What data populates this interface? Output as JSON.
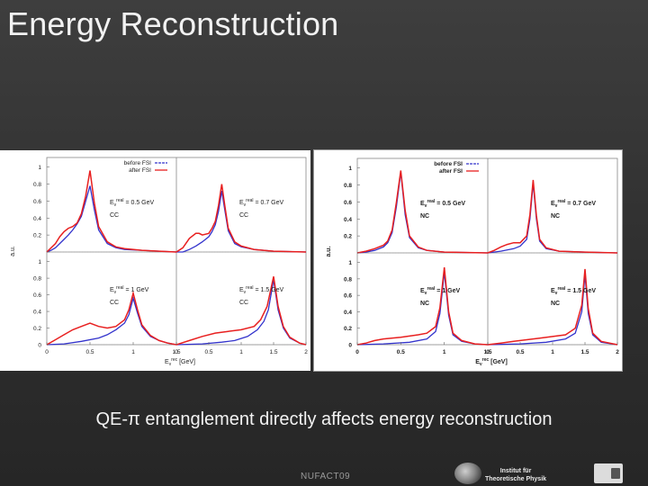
{
  "slide": {
    "title": "Energy Reconstruction",
    "caption": "QE-π entanglement directly affects energy reconstruction",
    "footer": "NUFACT09",
    "logo_text": [
      "Institut für",
      "Theoretische Physik"
    ]
  },
  "colors": {
    "before": "#3333cc",
    "after": "#e82020",
    "ref": "#9a9a9a"
  },
  "chart_data": [
    {
      "type": "line",
      "id": "cc",
      "ylabel": "a.u.",
      "xlabel": "E_ν^rec [GeV]",
      "legend": [
        "before FSI",
        "after FSI"
      ],
      "legend_placement": "top-right",
      "grid": false,
      "x_tick_labels": [
        "0",
        "0.5",
        "1",
        "1.5",
        "0",
        "0.5",
        "1",
        "1.5",
        "2"
      ],
      "y_tick_labels": [
        "1",
        "0.8",
        "0.6",
        "0.4",
        "0.2",
        "0"
      ],
      "ylim": [
        0,
        1.05
      ],
      "panels": [
        {
          "pos": "top-left",
          "ereal": "0.5",
          "channel": "CC",
          "xlim": [
            0,
            1.5
          ],
          "before": [
            [
              0,
              0
            ],
            [
              0.05,
              0.02
            ],
            [
              0.1,
              0.05
            ],
            [
              0.15,
              0.1
            ],
            [
              0.2,
              0.15
            ],
            [
              0.25,
              0.2
            ],
            [
              0.3,
              0.26
            ],
            [
              0.35,
              0.33
            ],
            [
              0.4,
              0.42
            ],
            [
              0.45,
              0.6
            ],
            [
              0.5,
              0.78
            ],
            [
              0.55,
              0.5
            ],
            [
              0.6,
              0.26
            ],
            [
              0.7,
              0.1
            ],
            [
              0.8,
              0.05
            ],
            [
              0.9,
              0.03
            ],
            [
              1.1,
              0.02
            ],
            [
              1.3,
              0.01
            ],
            [
              1.5,
              0
            ]
          ],
          "after": [
            [
              0,
              0
            ],
            [
              0.05,
              0.05
            ],
            [
              0.1,
              0.1
            ],
            [
              0.15,
              0.18
            ],
            [
              0.2,
              0.24
            ],
            [
              0.25,
              0.28
            ],
            [
              0.3,
              0.3
            ],
            [
              0.35,
              0.34
            ],
            [
              0.4,
              0.45
            ],
            [
              0.45,
              0.66
            ],
            [
              0.5,
              0.96
            ],
            [
              0.55,
              0.58
            ],
            [
              0.6,
              0.3
            ],
            [
              0.7,
              0.12
            ],
            [
              0.8,
              0.06
            ],
            [
              0.9,
              0.04
            ],
            [
              1.1,
              0.02
            ],
            [
              1.3,
              0.01
            ],
            [
              1.5,
              0
            ]
          ]
        },
        {
          "pos": "top-right",
          "ereal": "0.7",
          "channel": "CC",
          "xlim": [
            0,
            2
          ],
          "before": [
            [
              0,
              0
            ],
            [
              0.1,
              0
            ],
            [
              0.2,
              0.03
            ],
            [
              0.3,
              0.07
            ],
            [
              0.4,
              0.12
            ],
            [
              0.5,
              0.18
            ],
            [
              0.55,
              0.24
            ],
            [
              0.6,
              0.32
            ],
            [
              0.65,
              0.48
            ],
            [
              0.7,
              0.72
            ],
            [
              0.75,
              0.48
            ],
            [
              0.8,
              0.25
            ],
            [
              0.9,
              0.1
            ],
            [
              1,
              0.06
            ],
            [
              1.2,
              0.03
            ],
            [
              1.5,
              0.01
            ],
            [
              2,
              0
            ]
          ],
          "after": [
            [
              0,
              0
            ],
            [
              0.1,
              0.05
            ],
            [
              0.2,
              0.16
            ],
            [
              0.3,
              0.22
            ],
            [
              0.35,
              0.22
            ],
            [
              0.4,
              0.2
            ],
            [
              0.5,
              0.22
            ],
            [
              0.55,
              0.28
            ],
            [
              0.6,
              0.36
            ],
            [
              0.65,
              0.55
            ],
            [
              0.7,
              0.8
            ],
            [
              0.75,
              0.53
            ],
            [
              0.8,
              0.28
            ],
            [
              0.9,
              0.12
            ],
            [
              1,
              0.07
            ],
            [
              1.2,
              0.03
            ],
            [
              1.5,
              0.01
            ],
            [
              2,
              0
            ]
          ]
        },
        {
          "pos": "bottom-left",
          "ereal": "1",
          "channel": "CC",
          "xlim": [
            0,
            1.5
          ],
          "before": [
            [
              0,
              0
            ],
            [
              0.2,
              0.01
            ],
            [
              0.4,
              0.04
            ],
            [
              0.6,
              0.08
            ],
            [
              0.7,
              0.12
            ],
            [
              0.8,
              0.18
            ],
            [
              0.9,
              0.26
            ],
            [
              0.95,
              0.36
            ],
            [
              1,
              0.56
            ],
            [
              1.05,
              0.38
            ],
            [
              1.1,
              0.22
            ],
            [
              1.2,
              0.1
            ],
            [
              1.3,
              0.05
            ],
            [
              1.4,
              0.02
            ],
            [
              1.5,
              0
            ]
          ],
          "after": [
            [
              0,
              0
            ],
            [
              0.1,
              0.06
            ],
            [
              0.2,
              0.12
            ],
            [
              0.3,
              0.18
            ],
            [
              0.4,
              0.22
            ],
            [
              0.5,
              0.26
            ],
            [
              0.6,
              0.22
            ],
            [
              0.7,
              0.2
            ],
            [
              0.8,
              0.22
            ],
            [
              0.9,
              0.3
            ],
            [
              0.95,
              0.42
            ],
            [
              1,
              0.62
            ],
            [
              1.05,
              0.42
            ],
            [
              1.1,
              0.24
            ],
            [
              1.2,
              0.11
            ],
            [
              1.3,
              0.05
            ],
            [
              1.4,
              0.02
            ],
            [
              1.5,
              0
            ]
          ]
        },
        {
          "pos": "bottom-right",
          "ereal": "1.5",
          "channel": "CC",
          "xlim": [
            0,
            2
          ],
          "before": [
            [
              0,
              0
            ],
            [
              0.4,
              0.01
            ],
            [
              0.7,
              0.03
            ],
            [
              0.9,
              0.05
            ],
            [
              1.1,
              0.1
            ],
            [
              1.25,
              0.18
            ],
            [
              1.35,
              0.28
            ],
            [
              1.42,
              0.42
            ],
            [
              1.5,
              0.78
            ],
            [
              1.57,
              0.42
            ],
            [
              1.65,
              0.2
            ],
            [
              1.75,
              0.08
            ],
            [
              1.9,
              0.02
            ],
            [
              2,
              0
            ]
          ],
          "after": [
            [
              0,
              0
            ],
            [
              0.2,
              0.05
            ],
            [
              0.4,
              0.1
            ],
            [
              0.6,
              0.14
            ],
            [
              0.8,
              0.16
            ],
            [
              1,
              0.18
            ],
            [
              1.2,
              0.22
            ],
            [
              1.3,
              0.3
            ],
            [
              1.4,
              0.46
            ],
            [
              1.5,
              0.82
            ],
            [
              1.57,
              0.46
            ],
            [
              1.65,
              0.22
            ],
            [
              1.75,
              0.09
            ],
            [
              1.9,
              0.02
            ],
            [
              2,
              0
            ]
          ]
        }
      ]
    },
    {
      "type": "line",
      "id": "nc",
      "ylabel": "a.u.",
      "xlabel": "E_ν^rec [GeV]",
      "legend": [
        "before FSI",
        "after FSI"
      ],
      "legend_placement": "top-right",
      "grid": false,
      "x_tick_labels": [
        "0",
        "0.5",
        "1",
        "1.5",
        "0",
        "0.5",
        "1",
        "1.5",
        "2"
      ],
      "y_tick_labels": [
        "1",
        "0.8",
        "0.6",
        "0.4",
        "0.2",
        "0"
      ],
      "ylim": [
        0,
        1.05
      ],
      "panels": [
        {
          "pos": "top-left",
          "ereal": "0.5",
          "channel": "NC",
          "xlim": [
            0,
            1.5
          ],
          "before": [
            [
              0,
              0
            ],
            [
              0.1,
              0.01
            ],
            [
              0.2,
              0.03
            ],
            [
              0.3,
              0.07
            ],
            [
              0.35,
              0.12
            ],
            [
              0.4,
              0.24
            ],
            [
              0.45,
              0.55
            ],
            [
              0.5,
              0.95
            ],
            [
              0.55,
              0.45
            ],
            [
              0.6,
              0.18
            ],
            [
              0.7,
              0.06
            ],
            [
              0.8,
              0.03
            ],
            [
              1,
              0.01
            ],
            [
              1.5,
              0
            ]
          ],
          "after": [
            [
              0,
              0
            ],
            [
              0.1,
              0.02
            ],
            [
              0.2,
              0.05
            ],
            [
              0.3,
              0.09
            ],
            [
              0.35,
              0.14
            ],
            [
              0.4,
              0.27
            ],
            [
              0.45,
              0.6
            ],
            [
              0.5,
              0.97
            ],
            [
              0.55,
              0.5
            ],
            [
              0.6,
              0.2
            ],
            [
              0.7,
              0.07
            ],
            [
              0.8,
              0.03
            ],
            [
              1,
              0.01
            ],
            [
              1.5,
              0
            ]
          ]
        },
        {
          "pos": "top-right",
          "ereal": "0.7",
          "channel": "NC",
          "xlim": [
            0,
            2
          ],
          "before": [
            [
              0,
              0
            ],
            [
              0.2,
              0.02
            ],
            [
              0.4,
              0.05
            ],
            [
              0.5,
              0.08
            ],
            [
              0.6,
              0.16
            ],
            [
              0.65,
              0.4
            ],
            [
              0.7,
              0.82
            ],
            [
              0.75,
              0.4
            ],
            [
              0.8,
              0.14
            ],
            [
              0.9,
              0.05
            ],
            [
              1.1,
              0.02
            ],
            [
              1.5,
              0.01
            ],
            [
              2,
              0
            ]
          ],
          "after": [
            [
              0,
              0
            ],
            [
              0.1,
              0.03
            ],
            [
              0.2,
              0.07
            ],
            [
              0.3,
              0.1
            ],
            [
              0.4,
              0.12
            ],
            [
              0.5,
              0.12
            ],
            [
              0.6,
              0.2
            ],
            [
              0.65,
              0.45
            ],
            [
              0.7,
              0.86
            ],
            [
              0.75,
              0.44
            ],
            [
              0.8,
              0.16
            ],
            [
              0.9,
              0.06
            ],
            [
              1.1,
              0.02
            ],
            [
              1.5,
              0.01
            ],
            [
              2,
              0
            ]
          ]
        },
        {
          "pos": "bottom-left",
          "ereal": "1",
          "channel": "NC",
          "xlim": [
            0,
            1.5
          ],
          "before": [
            [
              0,
              0
            ],
            [
              0.3,
              0.01
            ],
            [
              0.6,
              0.03
            ],
            [
              0.8,
              0.07
            ],
            [
              0.9,
              0.16
            ],
            [
              0.95,
              0.38
            ],
            [
              1,
              0.88
            ],
            [
              1.05,
              0.36
            ],
            [
              1.1,
              0.12
            ],
            [
              1.2,
              0.04
            ],
            [
              1.35,
              0.01
            ],
            [
              1.5,
              0
            ]
          ],
          "after": [
            [
              0,
              0
            ],
            [
              0.1,
              0.02
            ],
            [
              0.2,
              0.05
            ],
            [
              0.3,
              0.07
            ],
            [
              0.5,
              0.09
            ],
            [
              0.7,
              0.12
            ],
            [
              0.8,
              0.14
            ],
            [
              0.9,
              0.22
            ],
            [
              0.95,
              0.45
            ],
            [
              1,
              0.94
            ],
            [
              1.05,
              0.4
            ],
            [
              1.1,
              0.14
            ],
            [
              1.2,
              0.05
            ],
            [
              1.35,
              0.01
            ],
            [
              1.5,
              0
            ]
          ]
        },
        {
          "pos": "bottom-right",
          "ereal": "1.5",
          "channel": "NC",
          "xlim": [
            0,
            2
          ],
          "before": [
            [
              0,
              0
            ],
            [
              0.5,
              0.01
            ],
            [
              0.9,
              0.03
            ],
            [
              1.2,
              0.07
            ],
            [
              1.35,
              0.14
            ],
            [
              1.45,
              0.4
            ],
            [
              1.5,
              0.85
            ],
            [
              1.55,
              0.38
            ],
            [
              1.62,
              0.12
            ],
            [
              1.75,
              0.03
            ],
            [
              2,
              0
            ]
          ],
          "after": [
            [
              0,
              0
            ],
            [
              0.2,
              0.02
            ],
            [
              0.4,
              0.04
            ],
            [
              0.6,
              0.06
            ],
            [
              0.8,
              0.08
            ],
            [
              1,
              0.1
            ],
            [
              1.2,
              0.12
            ],
            [
              1.35,
              0.2
            ],
            [
              1.45,
              0.48
            ],
            [
              1.5,
              0.92
            ],
            [
              1.55,
              0.44
            ],
            [
              1.62,
              0.14
            ],
            [
              1.75,
              0.04
            ],
            [
              2,
              0
            ]
          ]
        }
      ]
    }
  ]
}
